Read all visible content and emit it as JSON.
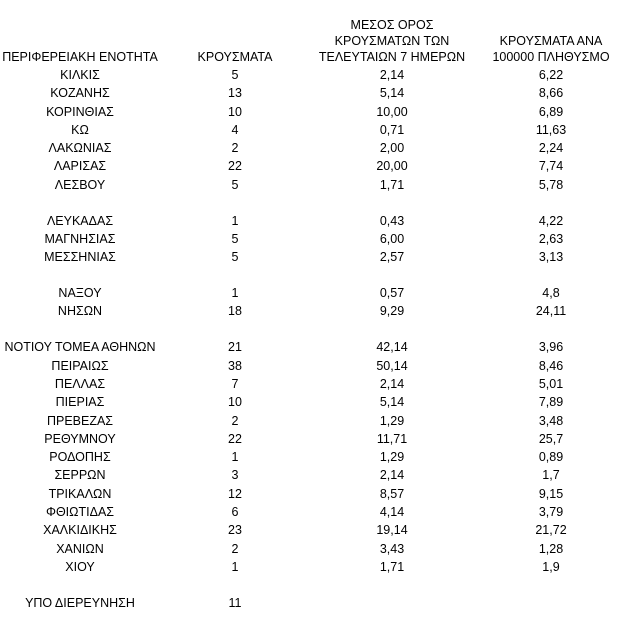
{
  "headers": {
    "region": [
      "ΠΕΡΙΦΕΡΕΙΑΚΗ ΕΝΟΤΗΤΑ"
    ],
    "cases": [
      "ΚΡΟΥΣΜΑΤΑ"
    ],
    "avg7": [
      "ΜΕΣΟΣ ΟΡΟΣ",
      "ΚΡΟΥΣΜΑΤΩΝ ΤΩΝ",
      "ΤΕΛΕΥΤΑΙΩΝ 7 ΗΜΕΡΩΝ"
    ],
    "per100k": [
      "ΚΡΟΥΣΜΑΤΑ ΑΝΑ",
      "100000 ΠΛΗΘΥΣΜΟ"
    ]
  },
  "rows": [
    {
      "region": "ΚΙΛΚΙΣ",
      "cases": "5",
      "avg7": "2,14",
      "per100k": "6,22"
    },
    {
      "region": "ΚΟΖΑΝΗΣ",
      "cases": "13",
      "avg7": "5,14",
      "per100k": "8,66"
    },
    {
      "region": "ΚΟΡΙΝΘΙΑΣ",
      "cases": "10",
      "avg7": "10,00",
      "per100k": "6,89"
    },
    {
      "region": "ΚΩ",
      "cases": "4",
      "avg7": "0,71",
      "per100k": "11,63"
    },
    {
      "region": "ΛΑΚΩΝΙΑΣ",
      "cases": "2",
      "avg7": "2,00",
      "per100k": "2,24"
    },
    {
      "region": "ΛΑΡΙΣΑΣ",
      "cases": "22",
      "avg7": "20,00",
      "per100k": "7,74"
    },
    {
      "region": "ΛΕΣΒΟΥ",
      "cases": "5",
      "avg7": "1,71",
      "per100k": "5,78"
    },
    {
      "gap": true
    },
    {
      "region": "ΛΕΥΚΑΔΑΣ",
      "cases": "1",
      "avg7": "0,43",
      "per100k": "4,22"
    },
    {
      "region": "ΜΑΓΝΗΣΙΑΣ",
      "cases": "5",
      "avg7": "6,00",
      "per100k": "2,63"
    },
    {
      "region": "ΜΕΣΣΗΝΙΑΣ",
      "cases": "5",
      "avg7": "2,57",
      "per100k": "3,13"
    },
    {
      "gap": true
    },
    {
      "region": "ΝΑΞΟΥ",
      "cases": "1",
      "avg7": "0,57",
      "per100k": "4,8"
    },
    {
      "region": "ΝΗΣΩΝ",
      "cases": "18",
      "avg7": "9,29",
      "per100k": "24,11"
    },
    {
      "gap": true
    },
    {
      "region": "ΝΟΤΙΟΥ ΤΟΜΕΑ ΑΘΗΝΩΝ",
      "cases": "21",
      "avg7": "42,14",
      "per100k": "3,96"
    },
    {
      "region": "ΠΕΙΡΑΙΩΣ",
      "cases": "38",
      "avg7": "50,14",
      "per100k": "8,46"
    },
    {
      "region": "ΠΕΛΛΑΣ",
      "cases": "7",
      "avg7": "2,14",
      "per100k": "5,01"
    },
    {
      "region": "ΠΙΕΡΙΑΣ",
      "cases": "10",
      "avg7": "5,14",
      "per100k": "7,89"
    },
    {
      "region": "ΠΡΕΒΕΖΑΣ",
      "cases": "2",
      "avg7": "1,29",
      "per100k": "3,48"
    },
    {
      "region": "ΡΕΘΥΜΝΟΥ",
      "cases": "22",
      "avg7": "11,71",
      "per100k": "25,7"
    },
    {
      "region": "ΡΟΔΟΠΗΣ",
      "cases": "1",
      "avg7": "1,29",
      "per100k": "0,89"
    },
    {
      "region": "ΣΕΡΡΩΝ",
      "cases": "3",
      "avg7": "2,14",
      "per100k": "1,7"
    },
    {
      "region": "ΤΡΙΚΑΛΩΝ",
      "cases": "12",
      "avg7": "8,57",
      "per100k": "9,15"
    },
    {
      "region": "ΦΘΙΩΤΙΔΑΣ",
      "cases": "6",
      "avg7": "4,14",
      "per100k": "3,79"
    },
    {
      "region": "ΧΑΛΚΙΔΙΚΗΣ",
      "cases": "23",
      "avg7": "19,14",
      "per100k": "21,72"
    },
    {
      "region": "ΧΑΝΙΩΝ",
      "cases": "2",
      "avg7": "3,43",
      "per100k": "1,28"
    },
    {
      "region": "ΧΙΟΥ",
      "cases": "1",
      "avg7": "1,71",
      "per100k": "1,9"
    },
    {
      "gap": true
    },
    {
      "region": "ΥΠΟ ΔΙΕΡΕΥΝΗΣΗ",
      "cases": "11",
      "avg7": "",
      "per100k": ""
    }
  ]
}
